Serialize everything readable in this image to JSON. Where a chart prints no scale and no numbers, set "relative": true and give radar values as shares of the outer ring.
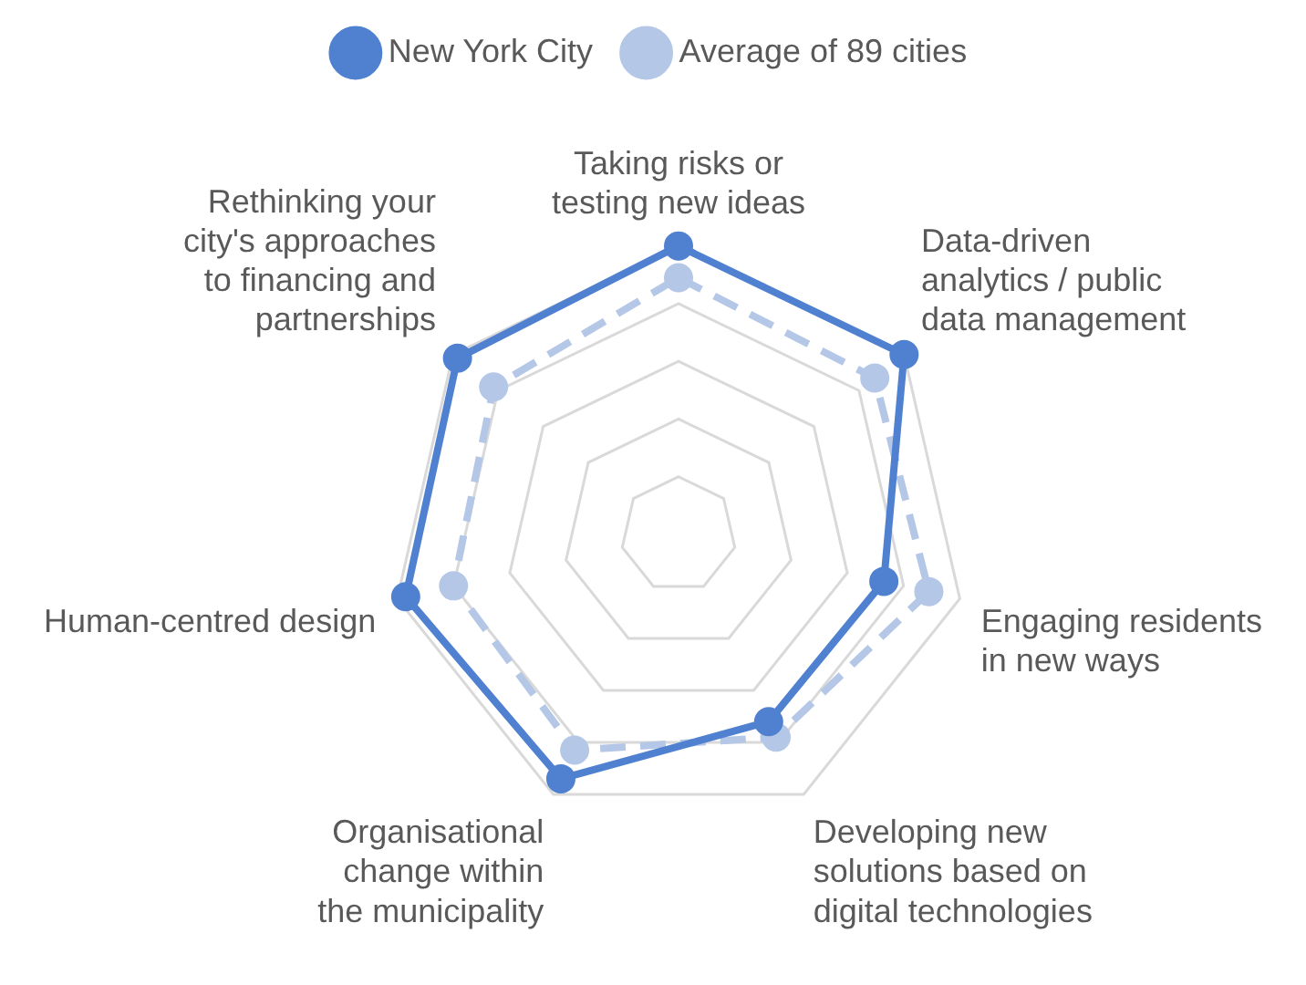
{
  "chart_data": {
    "type": "radar",
    "relative": true,
    "legend": "top",
    "marker": "circle",
    "categories": [
      "Taking risks or testing new ideas",
      "Data-driven analytics / public data management",
      "Engaging residents in new ways",
      "Developing new solutions based on digital technologies",
      "Organisational change within the municipality",
      "Human-centred design",
      "Rethinking your city's approaches to financing and partnerships"
    ],
    "series": [
      {
        "name": "New York City",
        "color": "#4f81d0",
        "line_style": "solid",
        "values": [
          1.0,
          1.0,
          0.73,
          0.72,
          0.94,
          0.97,
          0.98
        ]
      },
      {
        "name": "Average of 89 cities",
        "color": "#b4c7e7",
        "line_style": "dashed",
        "values": [
          0.89,
          0.87,
          0.89,
          0.78,
          0.83,
          0.8,
          0.82
        ]
      }
    ]
  }
}
